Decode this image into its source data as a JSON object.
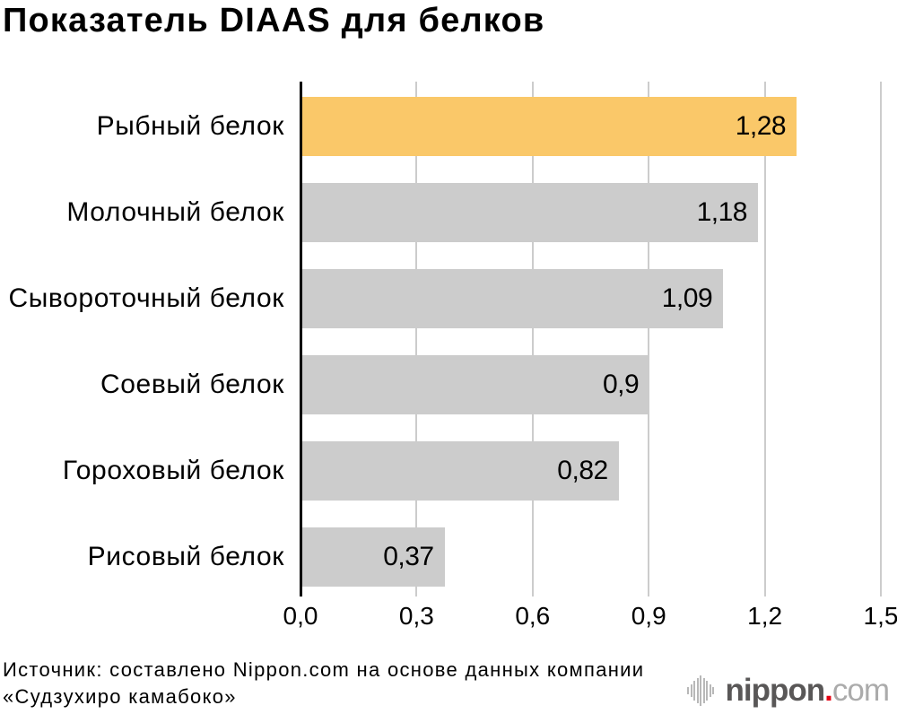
{
  "title": "Показатель DIAAS для белков",
  "chart_data": {
    "type": "bar",
    "orientation": "horizontal",
    "categories": [
      "Рыбный белок",
      "Молочный белок",
      "Сывороточный белок",
      "Соевый белок",
      "Гороховый белок",
      "Рисовый белок"
    ],
    "values": [
      1.28,
      1.18,
      1.09,
      0.9,
      0.82,
      0.37
    ],
    "value_labels": [
      "1,28",
      "1,18",
      "1,09",
      "0,9",
      "0,82",
      "0,37"
    ],
    "xlim": [
      0,
      1.5
    ],
    "xticks": [
      0,
      0.3,
      0.6,
      0.9,
      1.2,
      1.5
    ],
    "xtick_labels": [
      "0,0",
      "0,3",
      "0,6",
      "0,9",
      "1,2",
      "1,5"
    ],
    "highlight_index": 0,
    "bar_color": "#cccccc",
    "highlight_color": "#fac869",
    "gridline_color": "#cccccc",
    "axis_color": "#000000",
    "grid": true,
    "legend": false
  },
  "source_note": {
    "line1": "Источник: составлено Nippon.com на основе данных компании",
    "line2": "«Судзухиро камабоко»"
  },
  "logo": {
    "name": "nippon",
    "dot": ".",
    "tld": "com",
    "icon_color": "#b8b8b8",
    "text_color": "#595757",
    "tld_color": "#ababab",
    "dot_color": "#e60012"
  }
}
